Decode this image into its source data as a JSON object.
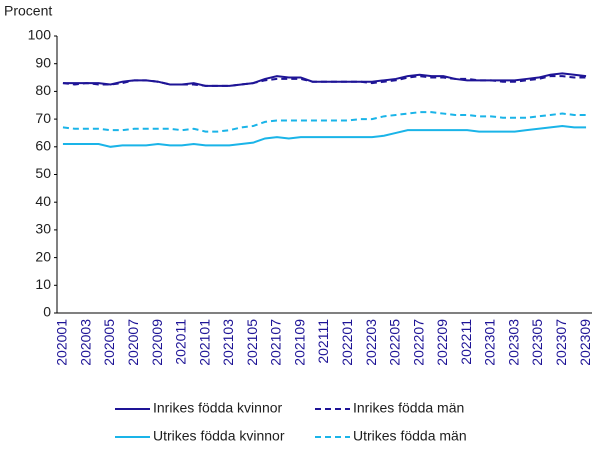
{
  "chart_data": {
    "type": "line",
    "y_label": "Procent",
    "categories": [
      "202001",
      null,
      "202003",
      null,
      "202005",
      null,
      "202007",
      null,
      "202009",
      null,
      "202011",
      null,
      "202101",
      null,
      "202103",
      null,
      "202105",
      null,
      "202107",
      null,
      "202109",
      null,
      "202111",
      null,
      "202201",
      null,
      "202203",
      null,
      "202205",
      null,
      "202207",
      null,
      "202209",
      null,
      "202211",
      null,
      "202301",
      null,
      "202303",
      null,
      "202305",
      null,
      "202307",
      null,
      "202309"
    ],
    "series": [
      {
        "name": "Inrikes födda kvinnor",
        "color": "#1e1496",
        "dashed": false,
        "values": [
          83,
          83,
          83,
          83,
          82.5,
          83.5,
          84,
          84,
          83.5,
          82.5,
          82.5,
          83,
          82,
          82,
          82,
          82.5,
          83,
          84.5,
          85.5,
          85,
          85,
          83.5,
          83.5,
          83.5,
          83.5,
          83.5,
          83.5,
          84,
          84.5,
          85.5,
          86,
          85.5,
          85.5,
          84.5,
          84,
          84,
          84,
          84,
          84,
          84.5,
          85,
          86,
          86.5,
          86,
          85.5
        ]
      },
      {
        "name": "Inrikes födda män",
        "color": "#1e1496",
        "dashed": true,
        "values": [
          83,
          82.5,
          83,
          82.5,
          82.5,
          83,
          84,
          84,
          83.5,
          82.5,
          82.5,
          82.5,
          82,
          82,
          82,
          82.5,
          83,
          84,
          84.5,
          84.5,
          84.5,
          83.5,
          83.5,
          83.5,
          83.5,
          83.5,
          83,
          83.5,
          84,
          85,
          85.5,
          85,
          85,
          84.5,
          84.5,
          84,
          84,
          83.5,
          83.5,
          84,
          84.5,
          85.5,
          85.5,
          85,
          85
        ]
      },
      {
        "name": "Utrikes födda kvinnor",
        "color": "#1ab4e8",
        "dashed": false,
        "values": [
          61,
          61,
          61,
          61,
          60,
          60.5,
          60.5,
          60.5,
          61,
          60.5,
          60.5,
          61,
          60.5,
          60.5,
          60.5,
          61,
          61.5,
          63,
          63.5,
          63,
          63.5,
          63.5,
          63.5,
          63.5,
          63.5,
          63.5,
          63.5,
          64,
          65,
          66,
          66,
          66,
          66,
          66,
          66,
          65.5,
          65.5,
          65.5,
          65.5,
          66,
          66.5,
          67,
          67.5,
          67,
          67
        ]
      },
      {
        "name": "Utrikes födda män",
        "color": "#1ab4e8",
        "dashed": true,
        "values": [
          67,
          66.5,
          66.5,
          66.5,
          66,
          66,
          66.5,
          66.5,
          66.5,
          66.5,
          66,
          66.5,
          65.5,
          65.5,
          66,
          67,
          67.5,
          69,
          69.5,
          69.5,
          69.5,
          69.5,
          69.5,
          69.5,
          69.5,
          70,
          70,
          71,
          71.5,
          72,
          72.5,
          72.5,
          72,
          71.5,
          71.5,
          71,
          71,
          70.5,
          70.5,
          70.5,
          71,
          71.5,
          72,
          71.5,
          71.5
        ]
      }
    ],
    "ylim": [
      0,
      100
    ],
    "yticks": [
      0,
      10,
      20,
      30,
      40,
      50,
      60,
      70,
      80,
      90,
      100
    ],
    "grid": false
  }
}
